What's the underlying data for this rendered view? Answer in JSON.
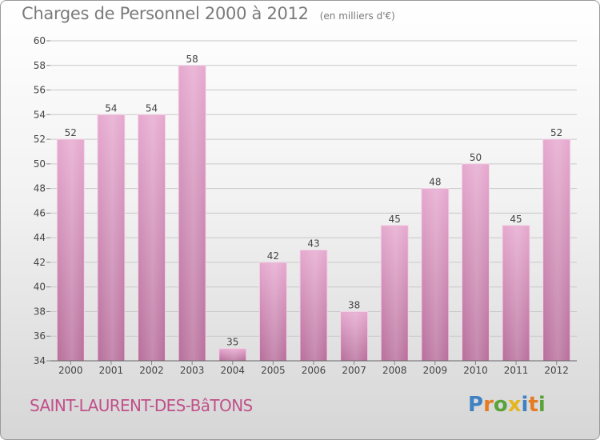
{
  "header": {
    "title": "Charges de Personnel 2000 à 2012",
    "unit": "(en milliers d'€)"
  },
  "footer": {
    "commune": "SAINT-LAURENT-DES-BâTONS",
    "logo": {
      "letters": [
        "P",
        "r",
        "o",
        "x",
        "i",
        "t",
        "i"
      ],
      "colors": [
        "#3e82c4",
        "#e57b23",
        "#5aa33a",
        "#e5b520",
        "#3e82c4",
        "#e57b23",
        "#5aa33a"
      ]
    }
  },
  "colors": {
    "bar": "#d08ab5",
    "bar_light": "#e5aed1",
    "bar_dark": "#b56896",
    "axis_text": "#444444",
    "title": "#7a7a7a",
    "commune": "#c0508a"
  },
  "chart_data": {
    "type": "bar",
    "categories": [
      "2000",
      "2001",
      "2002",
      "2003",
      "2004",
      "2005",
      "2006",
      "2007",
      "2008",
      "2009",
      "2010",
      "2011",
      "2012"
    ],
    "values": [
      52,
      54,
      54,
      58,
      35,
      42,
      43,
      38,
      45,
      48,
      50,
      45,
      52
    ],
    "data_labels": [
      "52",
      "54",
      "54",
      "58",
      "35",
      "42",
      "43",
      "38",
      "45",
      "48",
      "50",
      "45",
      "52"
    ],
    "ylim": [
      34,
      60
    ],
    "yticks": [
      34,
      36,
      38,
      40,
      42,
      44,
      46,
      48,
      50,
      52,
      54,
      56,
      58,
      60
    ],
    "grid": true
  }
}
